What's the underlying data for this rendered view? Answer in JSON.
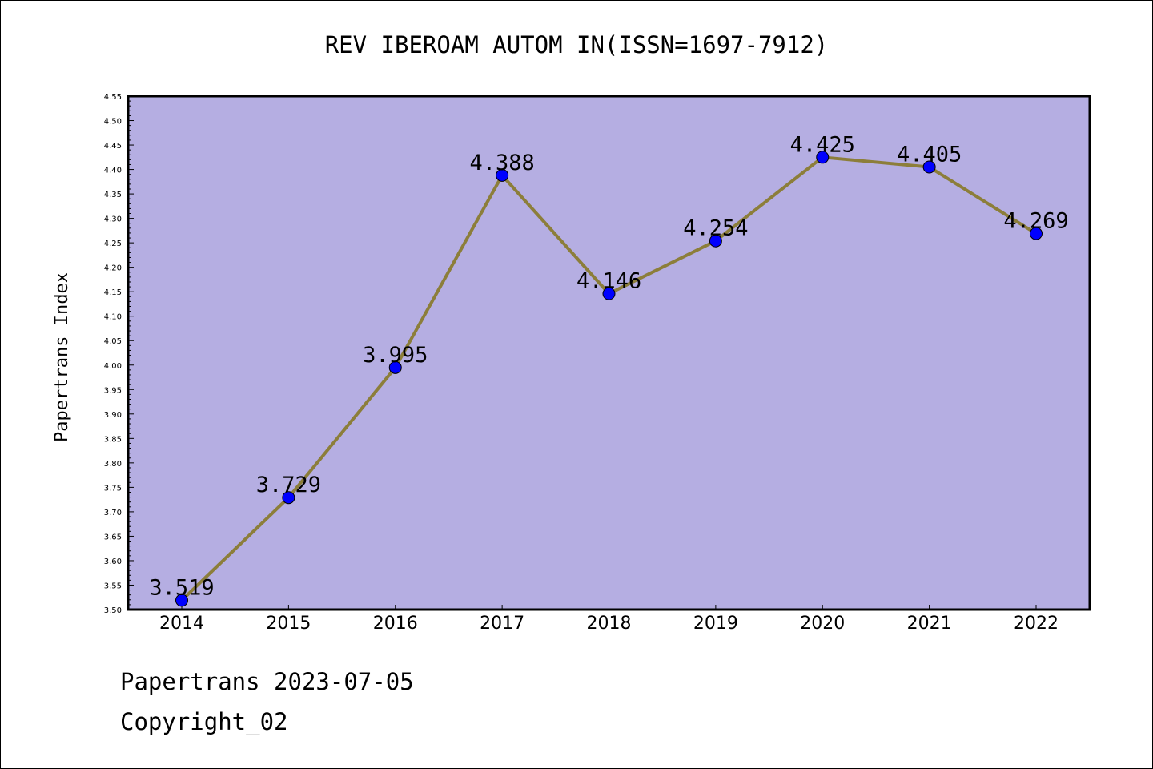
{
  "chart_data": {
    "type": "line",
    "title": "REV IBEROAM AUTOM IN(ISSN=1697-7912)",
    "xlabel": "",
    "ylabel": "Papertrans Index",
    "categories": [
      "2014",
      "2015",
      "2016",
      "2017",
      "2018",
      "2019",
      "2020",
      "2021",
      "2022"
    ],
    "series": [
      {
        "values": [
          3.519,
          3.729,
          3.995,
          4.388,
          4.146,
          4.254,
          4.425,
          4.405,
          4.269
        ],
        "labels": [
          "3.519",
          "3.729",
          "3.995",
          "4.388",
          "4.146",
          "4.254",
          "4.425",
          "4.405",
          "4.269"
        ]
      }
    ],
    "ylim": [
      3.5,
      4.55
    ],
    "yticks": [
      "3.50",
      "3.55",
      "3.60",
      "3.65",
      "3.70",
      "3.75",
      "3.80",
      "3.85",
      "3.90",
      "3.95",
      "4.00",
      "4.05",
      "4.10",
      "4.15",
      "4.20",
      "4.25",
      "4.30",
      "4.35",
      "4.40",
      "4.45",
      "4.50",
      "4.55"
    ],
    "grid": false,
    "legend": "none",
    "colors": {
      "plot_background": "#b5aee2",
      "line": "#8c7e3a",
      "marker": "#0000ff"
    }
  },
  "footer": {
    "line1": "Papertrans 2023-07-05",
    "line2": "Copyright_02"
  }
}
